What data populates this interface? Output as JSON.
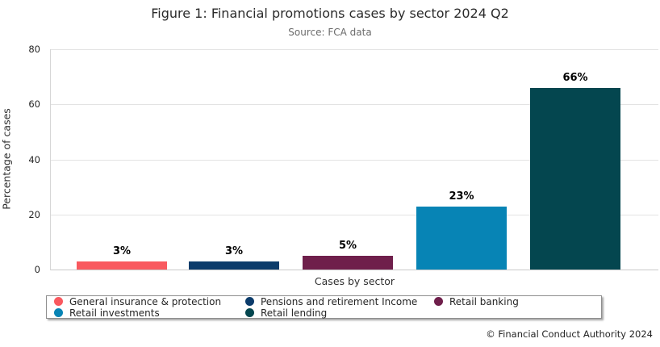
{
  "title": "Figure 1: Financial promotions cases by sector 2024 Q2",
  "subtitle": "Source: FCA data",
  "footer": {
    "copyright": "© Financial Conduct Authority 2024"
  },
  "chart_data": {
    "type": "bar",
    "title": "Figure 1: Financial promotions cases by sector 2024 Q2",
    "subtitle": "Source: FCA data",
    "xlabel": "Cases by sector",
    "ylabel": "Percentage of cases",
    "ylim": [
      0,
      80
    ],
    "yticks": [
      0,
      20,
      40,
      60,
      80
    ],
    "grid": true,
    "legend_position": "bottom",
    "categories": [
      "General insurance & protection",
      "Pensions and retirement Income",
      "Retail banking",
      "Retail investments",
      "Retail lending"
    ],
    "values": [
      3,
      3,
      5,
      23,
      66
    ],
    "data_labels": [
      "3%",
      "3%",
      "5%",
      "23%",
      "66%"
    ],
    "colors": [
      "#F9595F",
      "#0C3C6B",
      "#6F1F4B",
      "#0784B5",
      "#04464F"
    ]
  },
  "legend": {
    "items": [
      {
        "label": "General insurance & protection",
        "color": "#F9595F"
      },
      {
        "label": "Pensions and retirement Income",
        "color": "#0C3C6B"
      },
      {
        "label": "Retail banking",
        "color": "#6F1F4B"
      },
      {
        "label": "Retail investments",
        "color": "#0784B5"
      },
      {
        "label": "Retail lending",
        "color": "#04464F"
      }
    ]
  }
}
